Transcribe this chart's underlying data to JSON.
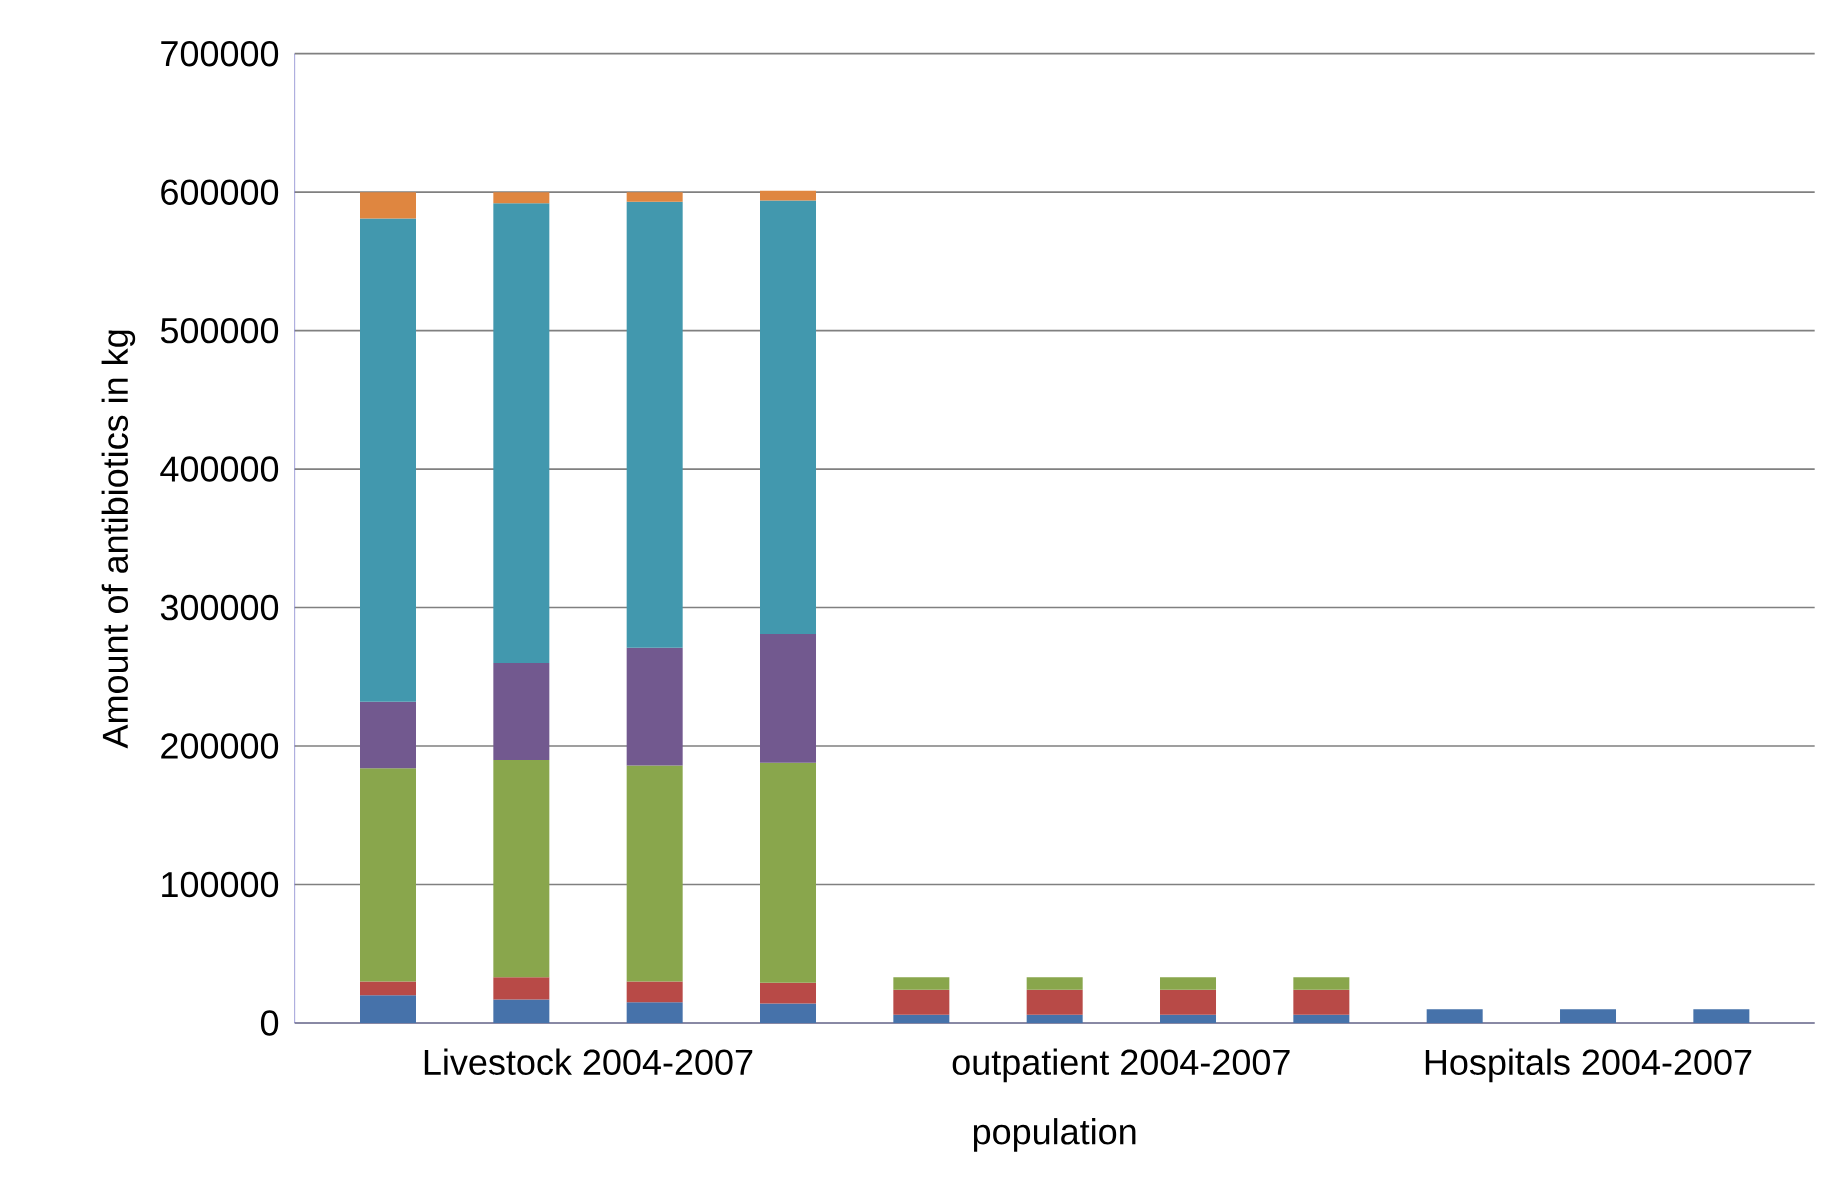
{
  "chart_data": {
    "type": "bar",
    "stacked": true,
    "xlabel": "population",
    "ylabel": "Amount of antibiotics in kg",
    "categories": [
      null,
      null,
      null,
      null,
      null,
      null,
      null,
      null,
      null,
      null,
      null
    ],
    "series": [
      {
        "color": "#4672aa",
        "values": [
          20000,
          17000,
          15000,
          14000,
          6000,
          6000,
          6000,
          6000,
          10000,
          10000,
          10000
        ]
      },
      {
        "color": "#b84a47",
        "values": [
          10000,
          16000,
          15000,
          15000,
          18000,
          18000,
          18000,
          18000,
          null,
          null,
          null
        ]
      },
      {
        "color": "#89a64c",
        "values": [
          154000,
          157000,
          156000,
          159000,
          9000,
          9000,
          9000,
          9000,
          null,
          null,
          null
        ]
      },
      {
        "color": "#72598f",
        "values": [
          48000,
          70000,
          85000,
          93000,
          null,
          null,
          null,
          null,
          null,
          null,
          null
        ]
      },
      {
        "color": "#4298ae",
        "values": [
          349000,
          332000,
          322000,
          313000,
          null,
          null,
          null,
          null,
          null,
          null,
          null
        ]
      },
      {
        "color": "#df8640",
        "values": [
          19000,
          8000,
          7000,
          7000,
          null,
          null,
          null,
          null,
          null,
          null,
          null
        ]
      }
    ],
    "ylim": [
      0,
      700000
    ],
    "yticks": [
      0,
      100000,
      200000,
      300000,
      400000,
      500000,
      600000,
      700000
    ],
    "grid": "y",
    "annotations": [
      "Livestock 2004-2007",
      "outpatient 2004-2007",
      "Hospitals 2004-2007"
    ]
  }
}
